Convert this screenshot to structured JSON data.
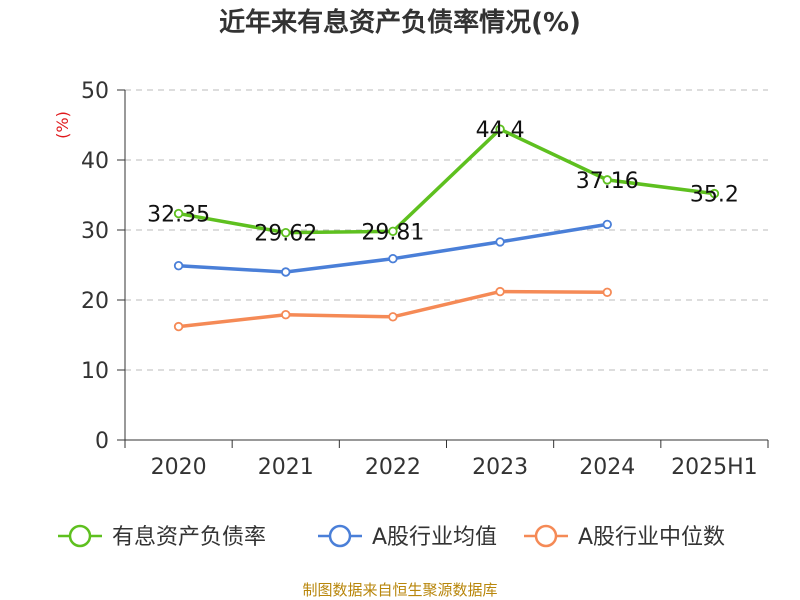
{
  "chart_data": {
    "type": "line",
    "title": "近年来有息资产负债率情况(%)",
    "ylabel": "(%)",
    "xlabel": "",
    "categories": [
      "2020",
      "2021",
      "2022",
      "2023",
      "2024",
      "2025H1"
    ],
    "yticks": [
      "0",
      "10",
      "20",
      "30",
      "40",
      "50"
    ],
    "ylim": [
      0,
      50
    ],
    "grid": true,
    "legend_position": "bottom",
    "series": [
      {
        "name": "有息资产负债率",
        "color": "#5ec01f",
        "values": [
          32.35,
          29.62,
          29.81,
          44.4,
          37.16,
          35.2
        ],
        "labels": [
          "32.35",
          "29.62",
          "29.81",
          "44.4",
          "37.16",
          "35.2"
        ]
      },
      {
        "name": "A股行业均值",
        "color": "#4a7fd8",
        "values": [
          24.9,
          24.0,
          25.9,
          28.3,
          30.8,
          null
        ]
      },
      {
        "name": "A股行业中位数",
        "color": "#f58a56",
        "values": [
          16.2,
          17.9,
          17.6,
          21.2,
          21.1,
          null
        ]
      }
    ]
  },
  "source": "制图数据来自恒生聚源数据库"
}
